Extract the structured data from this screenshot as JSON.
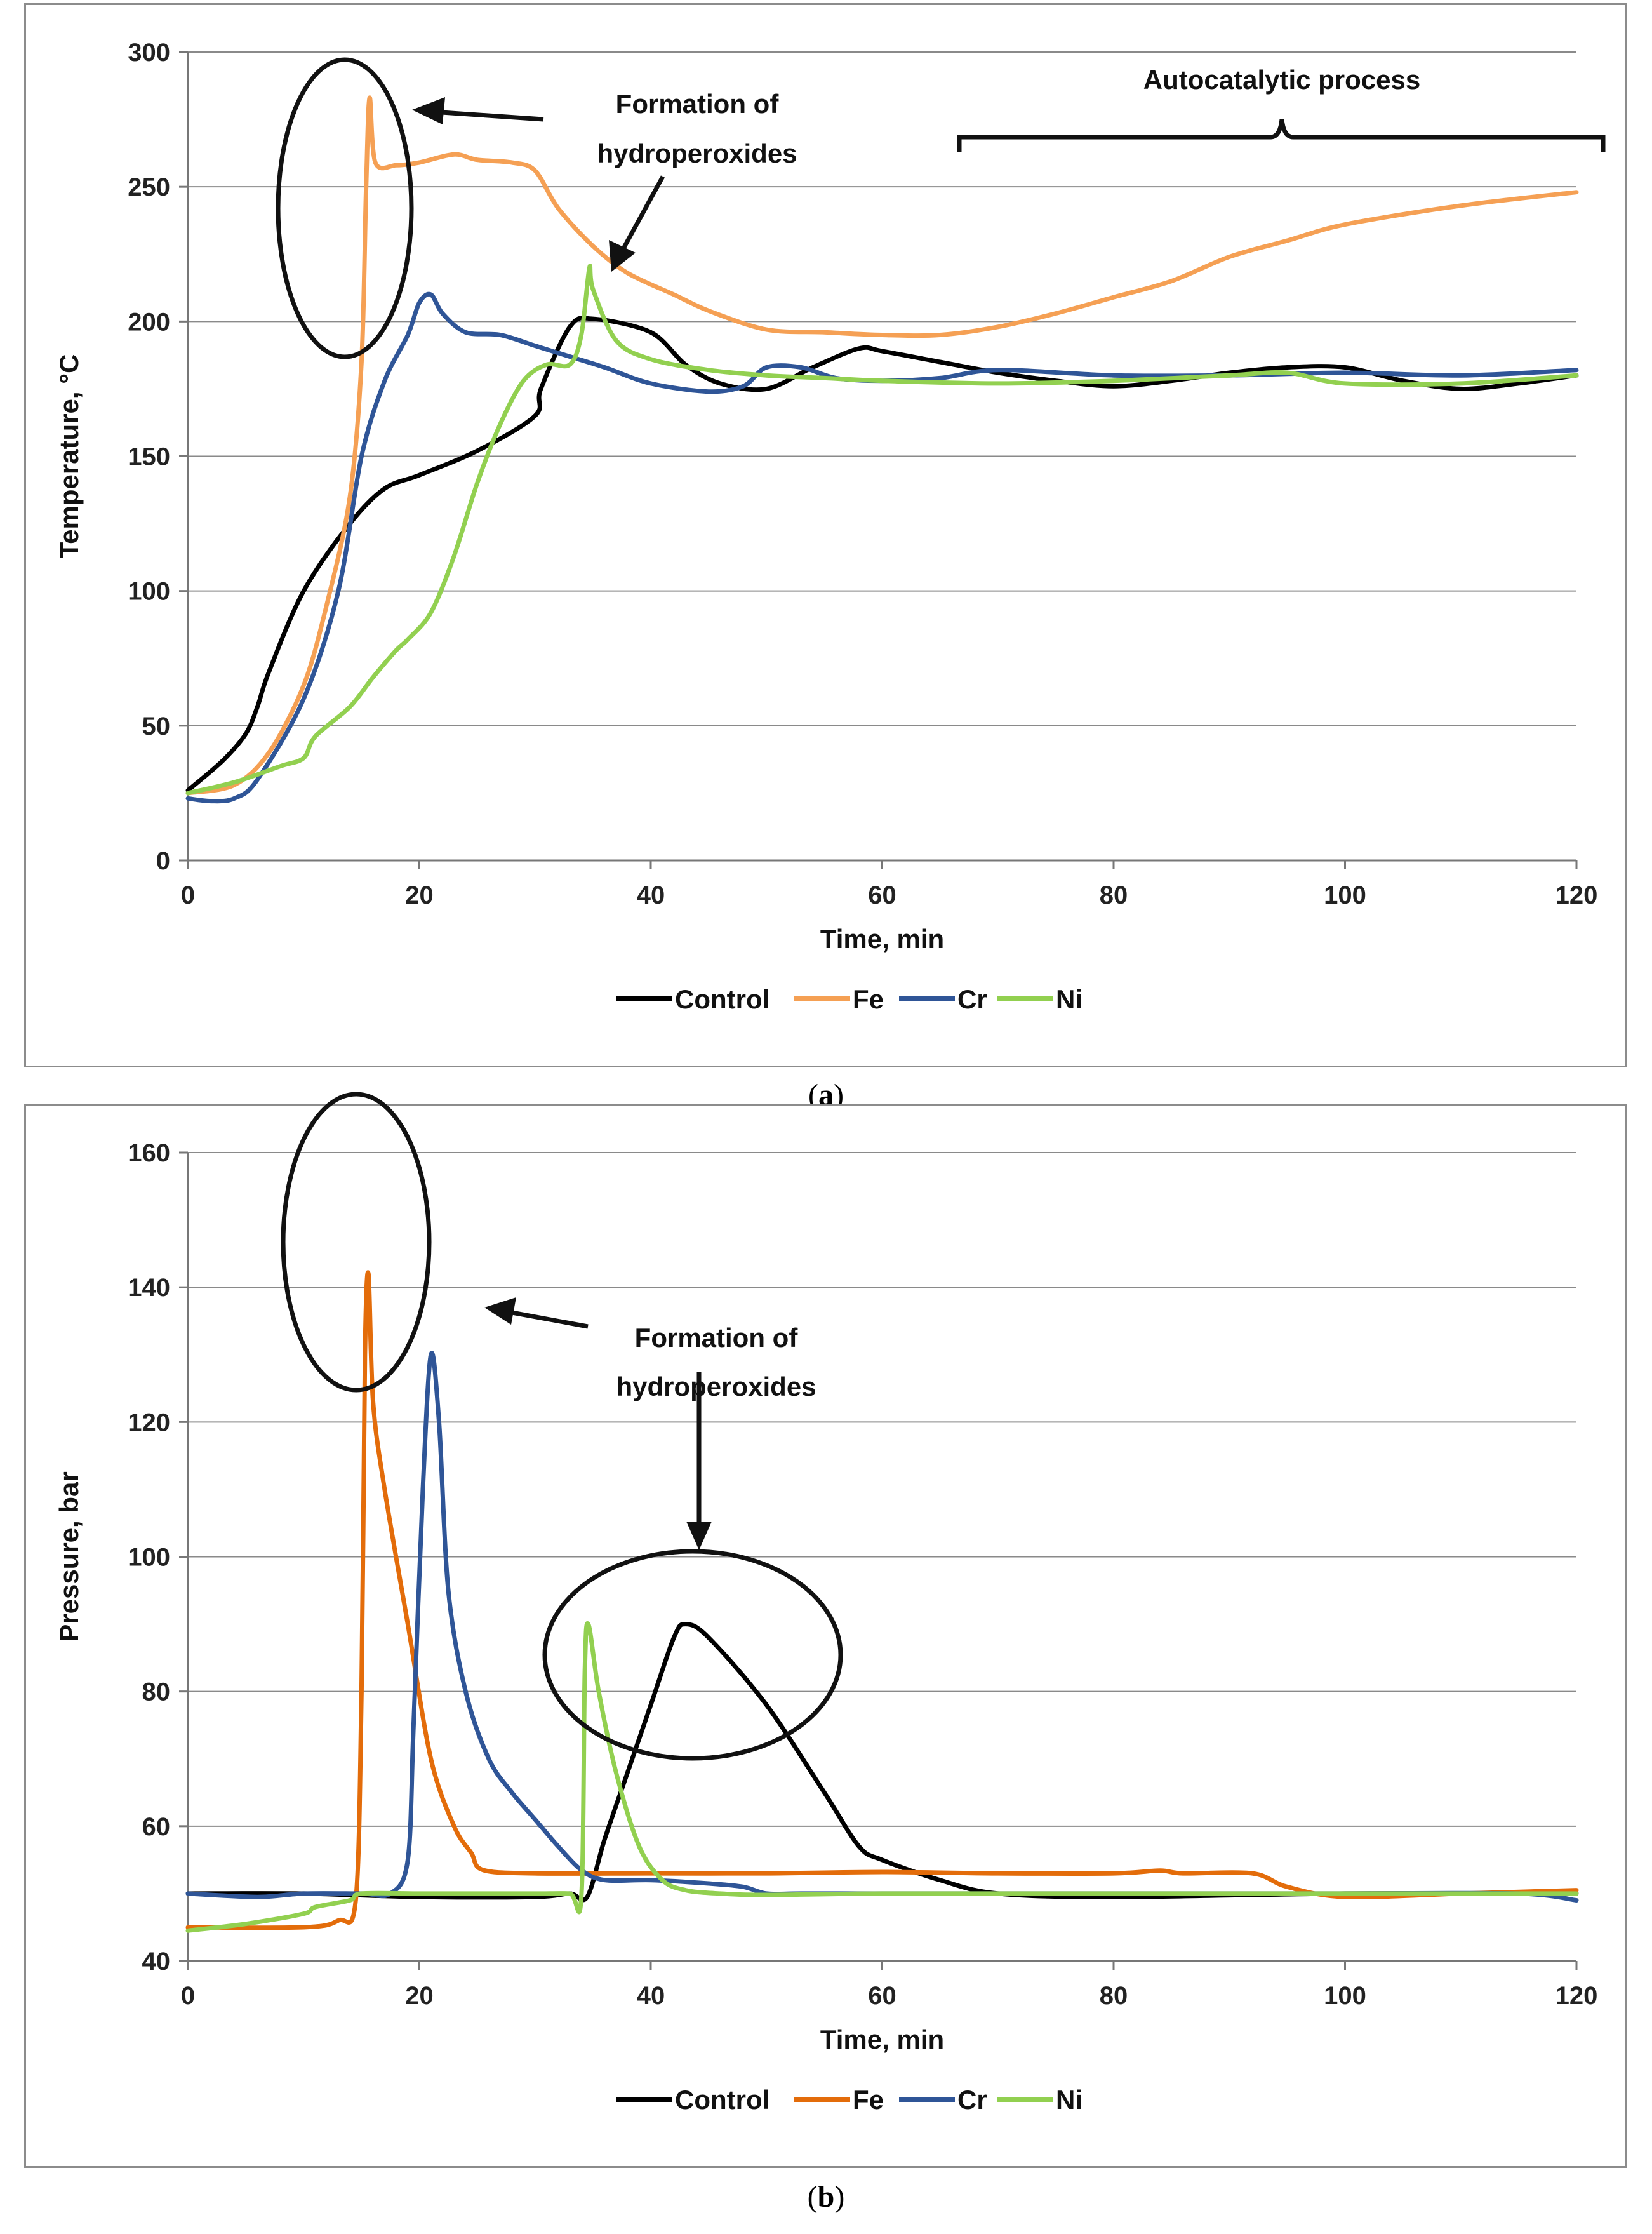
{
  "chart_data": [
    {
      "type": "line",
      "panel": "a",
      "caption_letter": "a",
      "xlabel": "Time, min",
      "ylabel": "Temperature, °C",
      "xlim": [
        0,
        120
      ],
      "ylim": [
        0,
        300
      ],
      "xticks": [
        0,
        20,
        40,
        60,
        80,
        100,
        120
      ],
      "yticks": [
        0,
        50,
        100,
        150,
        200,
        250,
        300
      ],
      "grid": "horizontal",
      "legend_position": "bottom",
      "annotations": [
        "Formation of",
        "hydroperoxides",
        "Autocatalytic process"
      ],
      "series": [
        {
          "name": "Control",
          "color": "#000000",
          "x": [
            0,
            3,
            5,
            6,
            7,
            10,
            14,
            17,
            20,
            25,
            30,
            30.5,
            33,
            35,
            40,
            43,
            46,
            50,
            54,
            58,
            60,
            65,
            70,
            75,
            80,
            85,
            90,
            95,
            100,
            105,
            110,
            115,
            120
          ],
          "y": [
            26,
            37,
            47,
            57,
            70,
            100,
            125,
            138,
            143,
            152,
            165,
            175,
            198,
            201,
            196,
            184,
            177,
            175,
            183,
            190,
            189,
            185,
            181,
            178,
            176,
            178,
            181,
            183,
            183,
            178,
            175,
            177,
            180
          ]
        },
        {
          "name": "Fe",
          "color": "#f5a054",
          "x": [
            0,
            4,
            7,
            10,
            12,
            14,
            15,
            15.4,
            15.7,
            16.2,
            18,
            20,
            23,
            25,
            28,
            30,
            32,
            35,
            38,
            42,
            45,
            50,
            55,
            60,
            65,
            70,
            75,
            80,
            85,
            90,
            95,
            100,
            110,
            120
          ],
          "y": [
            25,
            28,
            40,
            65,
            95,
            135,
            185,
            250,
            283,
            259,
            258,
            259,
            262,
            260,
            259,
            256,
            242,
            228,
            218,
            210,
            204,
            197,
            196,
            195,
            195,
            198,
            203,
            209,
            215,
            224,
            230,
            236,
            243,
            248
          ]
        },
        {
          "name": "Cr",
          "color": "#2f5597",
          "x": [
            0,
            2,
            4,
            6,
            10,
            13,
            15,
            17,
            19,
            20,
            21,
            22,
            24,
            27,
            30,
            33,
            36,
            40,
            45,
            48,
            50,
            53,
            56,
            60,
            65,
            70,
            80,
            90,
            100,
            110,
            120
          ],
          "y": [
            23,
            22,
            23,
            30,
            60,
            100,
            150,
            178,
            195,
            207,
            210,
            203,
            196,
            195,
            191,
            187,
            183,
            177,
            174,
            176,
            183,
            183,
            179,
            178,
            179,
            182,
            180,
            180,
            181,
            180,
            182
          ]
        },
        {
          "name": "Ni",
          "color": "#92d050",
          "x": [
            0,
            4,
            8,
            10,
            11,
            14,
            16,
            18,
            19,
            21,
            23,
            25,
            27,
            29,
            31,
            33,
            34,
            34.7,
            35,
            37,
            40,
            45,
            50,
            55,
            60,
            70,
            80,
            90,
            95,
            100,
            110,
            120
          ],
          "y": [
            25,
            29,
            35,
            38,
            46,
            57,
            68,
            78,
            82,
            92,
            113,
            140,
            162,
            178,
            184,
            184,
            195,
            220,
            212,
            193,
            186,
            182,
            180,
            179,
            178,
            177,
            178,
            180,
            181,
            177,
            177,
            180
          ]
        }
      ]
    },
    {
      "type": "line",
      "panel": "b",
      "caption_letter": "b",
      "xlabel": "Time, min",
      "ylabel": "Pressure, bar",
      "xlim": [
        0,
        120
      ],
      "ylim": [
        40,
        160
      ],
      "xticks": [
        0,
        20,
        40,
        60,
        80,
        100,
        120
      ],
      "yticks": [
        40,
        60,
        80,
        100,
        120,
        140,
        160
      ],
      "grid": "horizontal",
      "legend_position": "bottom",
      "annotations": [
        "Formation of",
        "hydroperoxides"
      ],
      "series": [
        {
          "name": "Control",
          "color": "#000000",
          "x": [
            0,
            10,
            20,
            30,
            33,
            34.5,
            36,
            38,
            40,
            42,
            43,
            45,
            50,
            55,
            58,
            60,
            65,
            70,
            80,
            100,
            120
          ],
          "y": [
            50,
            50,
            49.5,
            49.5,
            50,
            49.5,
            58,
            68,
            78,
            88,
            90,
            88,
            78,
            65,
            57,
            55,
            52,
            50,
            49.5,
            50,
            50
          ]
        },
        {
          "name": "Fe",
          "color": "#e36c0a",
          "x": [
            0,
            10,
            13,
            14.5,
            15,
            15.3,
            15.6,
            16,
            17,
            19,
            21,
            23,
            24.5,
            25.5,
            30,
            40,
            50,
            60,
            70,
            80,
            84,
            86,
            92,
            95,
            100,
            110,
            120
          ],
          "y": [
            45,
            45,
            46,
            49,
            80,
            130,
            142,
            123,
            110,
            90,
            70,
            60,
            56,
            53.5,
            53,
            53,
            53,
            53.2,
            53,
            53,
            53.4,
            53,
            53,
            51,
            49.5,
            50,
            50.5
          ]
        },
        {
          "name": "Cr",
          "color": "#2f5597",
          "x": [
            0,
            6,
            10,
            15,
            17.5,
            19,
            19.5,
            20.3,
            21,
            21.7,
            22.5,
            24,
            26,
            28,
            30,
            32,
            34,
            36,
            40,
            45,
            48,
            50,
            53,
            60,
            80,
            100,
            115,
            120
          ],
          "y": [
            50,
            49.5,
            50,
            50,
            50,
            55,
            75,
            110,
            130,
            120,
            95,
            80,
            70,
            65,
            61,
            57,
            53.5,
            52,
            52,
            51.5,
            51,
            50,
            50,
            50,
            50,
            50,
            50,
            49
          ]
        },
        {
          "name": "Ni",
          "color": "#92d050",
          "x": [
            0,
            5,
            10,
            11,
            14,
            15,
            20,
            25,
            30,
            33,
            34,
            34.3,
            34.6,
            35.5,
            37,
            39,
            41,
            43,
            46,
            50,
            60,
            80,
            100,
            120
          ],
          "y": [
            44.5,
            45.5,
            47,
            48,
            49,
            50,
            50,
            50,
            50,
            50,
            49.5,
            83,
            90,
            80,
            68,
            57,
            52,
            50.5,
            50,
            49.8,
            50,
            50,
            50,
            50
          ]
        }
      ]
    }
  ]
}
